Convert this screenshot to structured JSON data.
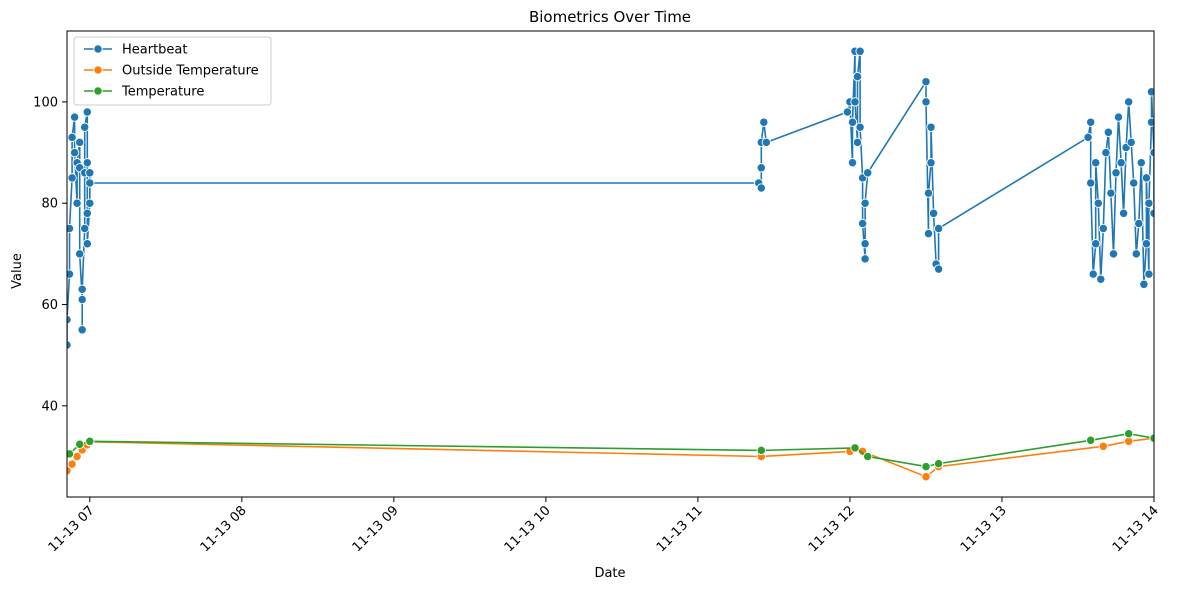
{
  "chart_data": {
    "type": "line",
    "title": "Biometrics Over Time",
    "xlabel": "Date",
    "ylabel": "Value",
    "xlim": [
      "11-13 06:51",
      "11-13 14:00"
    ],
    "ylim": [
      22,
      114
    ],
    "x_ticks": [
      "11-13 07",
      "11-13 08",
      "11-13 09",
      "11-13 10",
      "11-13 11",
      "11-13 12",
      "11-13 13",
      "11-13 14"
    ],
    "y_ticks": [
      40,
      60,
      80,
      100
    ],
    "legend_position": "top-left",
    "grid": false,
    "series": [
      {
        "name": "Heartbeat",
        "color": "#1f77b4",
        "points": [
          [
            "06:51",
            52
          ],
          [
            "06:51",
            57
          ],
          [
            "06:52",
            66
          ],
          [
            "06:52",
            75
          ],
          [
            "06:53",
            85
          ],
          [
            "06:53",
            93
          ],
          [
            "06:54",
            97
          ],
          [
            "06:54",
            90
          ],
          [
            "06:55",
            80
          ],
          [
            "06:55",
            88
          ],
          [
            "06:56",
            92
          ],
          [
            "06:56",
            87
          ],
          [
            "06:56",
            70
          ],
          [
            "06:57",
            61
          ],
          [
            "06:57",
            55
          ],
          [
            "06:57",
            63
          ],
          [
            "06:58",
            75
          ],
          [
            "06:58",
            86
          ],
          [
            "06:58",
            95
          ],
          [
            "06:59",
            98
          ],
          [
            "06:59",
            88
          ],
          [
            "06:59",
            78
          ],
          [
            "06:59",
            72
          ],
          [
            "07:00",
            80
          ],
          [
            "07:00",
            86
          ],
          [
            "07:00",
            84
          ],
          [
            "11:24",
            84
          ],
          [
            "11:25",
            83
          ],
          [
            "11:25",
            87
          ],
          [
            "11:25",
            92
          ],
          [
            "11:26",
            96
          ],
          [
            "11:27",
            92
          ],
          [
            "11:59",
            98
          ],
          [
            "12:00",
            100
          ],
          [
            "12:01",
            88
          ],
          [
            "12:01",
            96
          ],
          [
            "12:02",
            110
          ],
          [
            "12:02",
            100
          ],
          [
            "12:03",
            92
          ],
          [
            "12:03",
            105
          ],
          [
            "12:04",
            110
          ],
          [
            "12:04",
            95
          ],
          [
            "12:05",
            85
          ],
          [
            "12:05",
            76
          ],
          [
            "12:06",
            69
          ],
          [
            "12:06",
            72
          ],
          [
            "12:06",
            80
          ],
          [
            "12:07",
            86
          ],
          [
            "12:30",
            104
          ],
          [
            "12:30",
            100
          ],
          [
            "12:31",
            74
          ],
          [
            "12:31",
            82
          ],
          [
            "12:32",
            88
          ],
          [
            "12:32",
            95
          ],
          [
            "12:33",
            78
          ],
          [
            "12:34",
            68
          ],
          [
            "12:35",
            67
          ],
          [
            "12:35",
            75
          ],
          [
            "13:34",
            93
          ],
          [
            "13:35",
            96
          ],
          [
            "13:35",
            84
          ],
          [
            "13:36",
            66
          ],
          [
            "13:37",
            72
          ],
          [
            "13:37",
            88
          ],
          [
            "13:38",
            80
          ],
          [
            "13:39",
            65
          ],
          [
            "13:40",
            75
          ],
          [
            "13:41",
            90
          ],
          [
            "13:42",
            94
          ],
          [
            "13:43",
            82
          ],
          [
            "13:44",
            70
          ],
          [
            "13:45",
            86
          ],
          [
            "13:46",
            97
          ],
          [
            "13:47",
            88
          ],
          [
            "13:48",
            78
          ],
          [
            "13:49",
            91
          ],
          [
            "13:50",
            100
          ],
          [
            "13:51",
            92
          ],
          [
            "13:52",
            84
          ],
          [
            "13:53",
            70
          ],
          [
            "13:54",
            76
          ],
          [
            "13:55",
            88
          ],
          [
            "13:56",
            64
          ],
          [
            "13:57",
            72
          ],
          [
            "13:57",
            85
          ],
          [
            "13:58",
            66
          ],
          [
            "13:58",
            80
          ],
          [
            "13:59",
            96
          ],
          [
            "13:59",
            102
          ],
          [
            "14:00",
            90
          ],
          [
            "14:00",
            78
          ]
        ]
      },
      {
        "name": "Outside Temperature",
        "color": "#ff7f0e",
        "points": [
          [
            "06:51",
            27.2
          ],
          [
            "06:53",
            28.5
          ],
          [
            "06:55",
            30
          ],
          [
            "06:57",
            31.3
          ],
          [
            "06:59",
            32.3
          ],
          [
            "07:00",
            32.9
          ],
          [
            "11:25",
            30.0
          ],
          [
            "12:00",
            31.0
          ],
          [
            "12:05",
            31.0
          ],
          [
            "12:30",
            26.0
          ],
          [
            "12:35",
            28.0
          ],
          [
            "13:40",
            32.0
          ],
          [
            "13:50",
            33.0
          ],
          [
            "14:00",
            33.6
          ]
        ]
      },
      {
        "name": "Temperature",
        "color": "#2ca02c",
        "points": [
          [
            "06:52",
            30.5
          ],
          [
            "06:56",
            32.4
          ],
          [
            "07:00",
            33.0
          ],
          [
            "11:25",
            31.2
          ],
          [
            "12:02",
            31.7
          ],
          [
            "12:07",
            30.0
          ],
          [
            "12:30",
            28.0
          ],
          [
            "12:35",
            28.6
          ],
          [
            "13:35",
            33.2
          ],
          [
            "13:50",
            34.5
          ],
          [
            "14:00",
            33.6
          ]
        ]
      }
    ]
  }
}
